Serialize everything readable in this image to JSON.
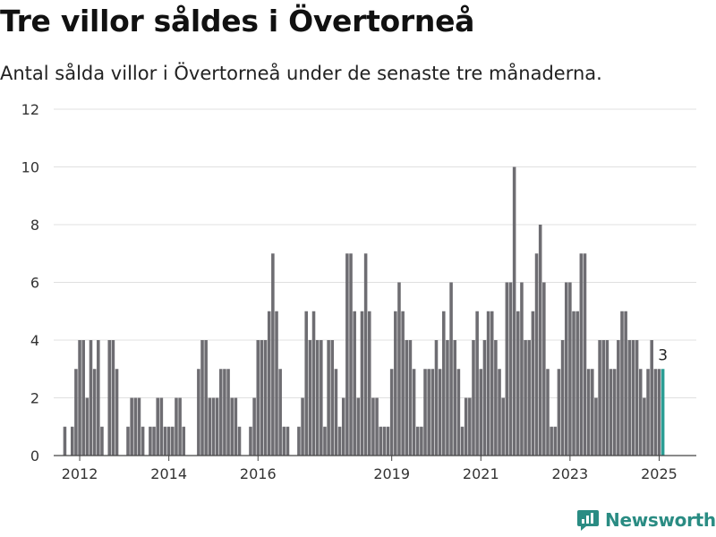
{
  "header": {
    "title": "Tre villor såldes i Övertorneå",
    "subtitle": "Antal sålda villor i Övertorneå under de senaste tre månaderna."
  },
  "brand": {
    "name": "Newsworthy",
    "color": "#2a8c83",
    "icon": "newsworthy-logo-icon"
  },
  "colors": {
    "bar": "#6e6d72",
    "highlight": "#2a9d94",
    "grid": "#e0e0e0",
    "axis": "#444444"
  },
  "chart_data": {
    "type": "bar",
    "title": "",
    "xlabel": "",
    "ylabel": "",
    "ylim": [
      0,
      12
    ],
    "yticks": [
      0,
      2,
      4,
      6,
      8,
      10,
      12
    ],
    "xlim": [
      "2011-06",
      "2025-11"
    ],
    "xticks": [
      {
        "label": "2012",
        "date": "2012-01"
      },
      {
        "label": "2014",
        "date": "2014-01"
      },
      {
        "label": "2016",
        "date": "2016-01"
      },
      {
        "label": "2019",
        "date": "2019-01"
      },
      {
        "label": "2021",
        "date": "2021-01"
      },
      {
        "label": "2023",
        "date": "2023-01"
      },
      {
        "label": "2025",
        "date": "2025-01"
      }
    ],
    "grid": true,
    "start": "2011-08",
    "values": [
      0,
      1,
      0,
      1,
      3,
      4,
      4,
      2,
      4,
      3,
      4,
      1,
      0,
      4,
      4,
      3,
      0,
      0,
      1,
      2,
      2,
      2,
      1,
      0,
      1,
      1,
      2,
      2,
      1,
      1,
      1,
      2,
      2,
      1,
      0,
      0,
      0,
      3,
      4,
      4,
      2,
      2,
      2,
      3,
      3,
      3,
      2,
      2,
      1,
      0,
      0,
      1,
      2,
      4,
      4,
      4,
      5,
      7,
      5,
      3,
      1,
      1,
      0,
      0,
      1,
      2,
      5,
      4,
      5,
      4,
      4,
      1,
      4,
      4,
      3,
      1,
      2,
      7,
      7,
      5,
      2,
      5,
      7,
      5,
      2,
      2,
      1,
      1,
      1,
      3,
      5,
      6,
      5,
      4,
      4,
      3,
      1,
      1,
      3,
      3,
      3,
      4,
      3,
      5,
      4,
      6,
      4,
      3,
      1,
      2,
      2,
      4,
      5,
      3,
      4,
      5,
      5,
      4,
      3,
      2,
      6,
      6,
      10,
      5,
      6,
      4,
      4,
      5,
      7,
      8,
      6,
      3,
      1,
      1,
      3,
      4,
      6,
      6,
      5,
      5,
      7,
      7,
      3,
      3,
      2,
      4,
      4,
      4,
      3,
      3,
      4,
      5,
      5,
      4,
      4,
      4,
      3,
      2,
      3,
      4,
      3,
      3,
      3
    ],
    "highlight_last": true,
    "last_label": "3"
  }
}
